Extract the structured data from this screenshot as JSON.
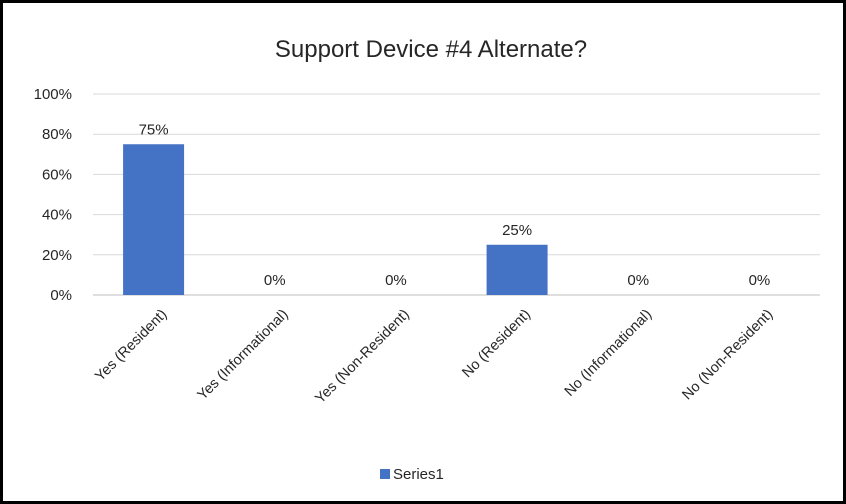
{
  "chart_data": {
    "type": "bar",
    "title": "Support Device #4 Alternate?",
    "categories": [
      "Yes (Resident)",
      "Yes (Informational)",
      "Yes (Non-Resident)",
      "No (Resident)",
      "No (Informational)",
      "No (Non-Resident)"
    ],
    "series": [
      {
        "name": "Series1",
        "values": [
          75,
          0,
          0,
          25,
          0,
          0
        ],
        "labels": [
          "75%",
          "0%",
          "0%",
          "25%",
          "0%",
          "0%"
        ],
        "color": "#4472C4"
      }
    ],
    "yticks": [
      "0%",
      "20%",
      "40%",
      "60%",
      "80%",
      "100%"
    ],
    "ylim": [
      0,
      100
    ],
    "grid": true,
    "legend": "bottom",
    "xlabel": "",
    "ylabel": ""
  }
}
